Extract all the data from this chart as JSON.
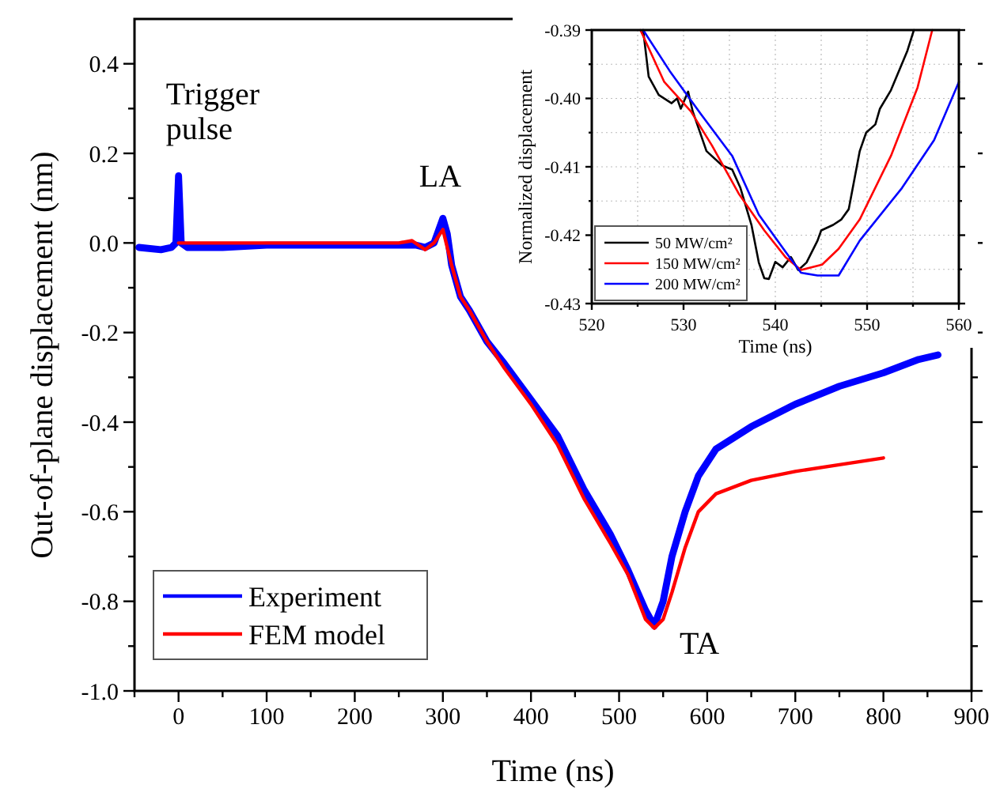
{
  "chart_data": [
    {
      "type": "line",
      "xlabel": "Time (ns)",
      "ylabel": "Out-of-plane displacement (nm)",
      "xlim": [
        -50,
        900
      ],
      "ylim": [
        -1.0,
        0.5
      ],
      "xticks": [
        {
          "value": -50,
          "label": null
        },
        0,
        {
          "value": 50,
          "label": null
        },
        100,
        {
          "value": 150,
          "label": null
        },
        200,
        {
          "value": 250,
          "label": null
        },
        300,
        {
          "value": 350,
          "label": null
        },
        400,
        {
          "value": 450,
          "label": null
        },
        500,
        {
          "value": 550,
          "label": null
        },
        600,
        {
          "value": 650,
          "label": null
        },
        700,
        {
          "value": 750,
          "label": null
        },
        800,
        {
          "value": 850,
          "label": null
        },
        900
      ],
      "yticks": [
        {
          "value": -1.0,
          "label": "-1.0"
        },
        {
          "value": -0.9,
          "label": null
        },
        {
          "value": -0.8,
          "label": "-0.8"
        },
        {
          "value": -0.7,
          "label": null
        },
        {
          "value": -0.6,
          "label": "-0.6"
        },
        {
          "value": -0.5,
          "label": null
        },
        {
          "value": -0.4,
          "label": "-0.4"
        },
        {
          "value": -0.3,
          "label": null
        },
        {
          "value": -0.2,
          "label": "-0.2"
        },
        {
          "value": -0.1,
          "label": null
        },
        {
          "value": 0,
          "label": "0.0"
        },
        {
          "value": 0.1,
          "label": null
        },
        {
          "value": 0.2,
          "label": "0.2"
        },
        {
          "value": 0.3,
          "label": null
        },
        {
          "value": 0.4,
          "label": "0.4"
        }
      ],
      "grid": false,
      "legend": "bottom left",
      "marker": "none",
      "line_style": "solid",
      "annotations": [
        {
          "text": "Trigger pulse",
          "x": 0,
          "y": 0.15
        },
        {
          "text": "LA",
          "x": 300,
          "y": 0.055
        },
        {
          "text": "TA",
          "x": 540,
          "y": -0.86
        }
      ],
      "series": [
        {
          "name": "Experiment",
          "color": "#0000ff",
          "x": [
            -45,
            -20,
            -8,
            -3,
            0,
            3,
            10,
            50,
            100,
            150,
            200,
            250,
            270,
            280,
            290,
            300,
            305,
            310,
            320,
            330,
            350,
            370,
            400,
            430,
            460,
            490,
            510,
            530,
            540,
            550,
            560,
            575,
            590,
            610,
            650,
            700,
            750,
            800,
            840,
            862
          ],
          "values": [
            -0.01,
            -0.015,
            -0.01,
            0.0,
            0.15,
            0.0,
            -0.01,
            -0.01,
            -0.005,
            -0.005,
            -0.005,
            -0.005,
            -0.005,
            -0.01,
            0.0,
            0.055,
            0.02,
            -0.05,
            -0.12,
            -0.15,
            -0.22,
            -0.27,
            -0.35,
            -0.43,
            -0.55,
            -0.65,
            -0.73,
            -0.82,
            -0.855,
            -0.8,
            -0.7,
            -0.6,
            -0.52,
            -0.46,
            -0.41,
            -0.36,
            -0.32,
            -0.29,
            -0.26,
            -0.25
          ]
        },
        {
          "name": "FEM model",
          "color": "#ff0000",
          "x": [
            0,
            100,
            250,
            265,
            280,
            290,
            300,
            310,
            320,
            330,
            350,
            370,
            400,
            430,
            460,
            490,
            510,
            530,
            540,
            550,
            560,
            575,
            590,
            610,
            650,
            700,
            750,
            800
          ],
          "values": [
            0,
            0,
            0,
            0.005,
            -0.015,
            0.0,
            0.03,
            -0.05,
            -0.12,
            -0.15,
            -0.22,
            -0.28,
            -0.36,
            -0.45,
            -0.57,
            -0.67,
            -0.74,
            -0.84,
            -0.86,
            -0.84,
            -0.78,
            -0.68,
            -0.6,
            -0.56,
            -0.53,
            -0.51,
            -0.495,
            -0.48
          ]
        }
      ]
    },
    {
      "type": "line",
      "xlabel": "Time (ns)",
      "ylabel": "Normalized displacement",
      "xlim": [
        520,
        560
      ],
      "ylim": [
        -0.43,
        -0.39
      ],
      "xticks": [
        520,
        {
          "value": 525,
          "label": null
        },
        530,
        {
          "value": 535,
          "label": null
        },
        540,
        {
          "value": 545,
          "label": null
        },
        550,
        {
          "value": 555,
          "label": null
        },
        560
      ],
      "yticks": [
        {
          "value": -0.43,
          "label": "-0.43"
        },
        {
          "value": -0.425,
          "label": null
        },
        {
          "value": -0.42,
          "label": "-0.42"
        },
        {
          "value": -0.415,
          "label": null
        },
        {
          "value": -0.41,
          "label": "-0.41"
        },
        {
          "value": -0.405,
          "label": null
        },
        {
          "value": -0.4,
          "label": "-0.40"
        },
        {
          "value": -0.395,
          "label": null
        },
        {
          "value": -0.39,
          "label": "-0.39"
        }
      ],
      "grid": true,
      "legend": "bottom left",
      "marker": "none",
      "line_style": "solid",
      "series": [
        {
          "name": "50 MW/cm²",
          "color": "#000000",
          "x": [
            525.6,
            526.2,
            527.3,
            528.7,
            529.3,
            529.7,
            530.5,
            531,
            532.5,
            534.2,
            535.3,
            536.2,
            537.4,
            538.2,
            538.8,
            539.3,
            540,
            540.8,
            541.7,
            542.5,
            543.4,
            544.6,
            545,
            546.3,
            547.2,
            548,
            549.2,
            549.9,
            550.9,
            551.4,
            552.6,
            554.4,
            555.1
          ],
          "values": [
            -0.39,
            -0.3968,
            -0.3995,
            -0.4007,
            -0.4,
            -0.4015,
            -0.399,
            -0.4019,
            -0.4077,
            -0.4098,
            -0.4104,
            -0.4131,
            -0.4185,
            -0.424,
            -0.4263,
            -0.4264,
            -0.4239,
            -0.4247,
            -0.4232,
            -0.4251,
            -0.424,
            -0.4208,
            -0.4193,
            -0.4185,
            -0.4177,
            -0.4162,
            -0.4077,
            -0.405,
            -0.4038,
            -0.4015,
            -0.3988,
            -0.393,
            -0.39
          ]
        },
        {
          "name": "150 MW/cm²",
          "color": "#ff0000",
          "x": [
            525.3,
            527.9,
            530.8,
            533.1,
            536,
            538.8,
            541.1,
            542.8,
            545.1,
            546.9,
            549.2,
            552.6,
            555.5,
            557.1
          ],
          "values": [
            -0.39,
            -0.3976,
            -0.4019,
            -0.4069,
            -0.4139,
            -0.4193,
            -0.4232,
            -0.4251,
            -0.4243,
            -0.422,
            -0.4177,
            -0.4084,
            -0.3984,
            -0.39
          ]
        },
        {
          "name": "200 MW/cm²",
          "color": "#0000ff",
          "x": [
            525.6,
            528.5,
            531.9,
            535.3,
            538.2,
            541.1,
            542.8,
            544.6,
            546.9,
            549.2,
            553.8,
            557.3,
            560
          ],
          "values": [
            -0.39,
            -0.396,
            -0.4023,
            -0.4084,
            -0.417,
            -0.4224,
            -0.4255,
            -0.4259,
            -0.4259,
            -0.4208,
            -0.4131,
            -0.4061,
            -0.3976
          ]
        }
      ]
    }
  ]
}
